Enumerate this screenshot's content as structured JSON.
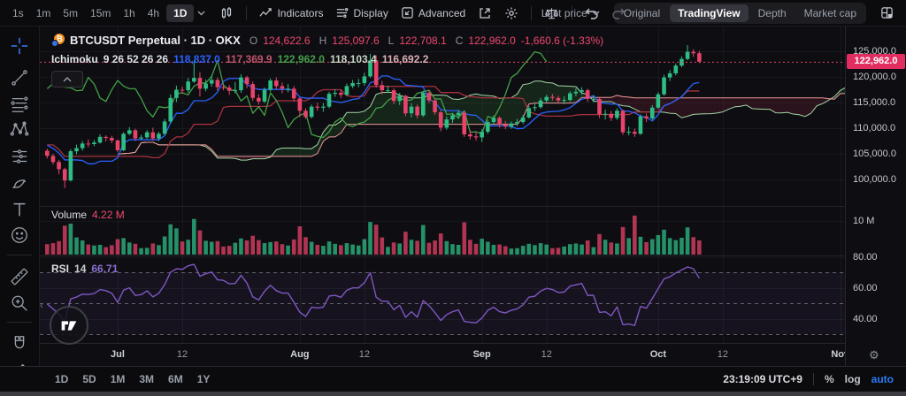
{
  "toolbar_top": {
    "timeframes": [
      "1s",
      "1m",
      "5m",
      "15m",
      "1h",
      "4h"
    ],
    "active_timeframe": "1D",
    "buttons": {
      "indicators": "Indicators",
      "display": "Display",
      "advanced": "Advanced"
    },
    "last_price_label": "Last price",
    "view_tabs": [
      "Original",
      "TradingView",
      "Depth",
      "Market cap"
    ],
    "active_view_tab": "TradingView"
  },
  "legend": {
    "symbol_title": "BTCUSDT Perpetual · 1D · OKX",
    "ohlc": {
      "o_label": "O",
      "o": "124,622.6",
      "h_label": "H",
      "h": "125,097.6",
      "l_label": "L",
      "l": "122,708.1",
      "c_label": "C",
      "c": "122,962.0",
      "change": "-1,660.6 (-1.33%)"
    },
    "ichimoku": {
      "name": "Ichimoku",
      "params": "9 26 52 26 26",
      "tenkan": "118,837.0",
      "kijun": "117,369.9",
      "chikou": "122,962.0",
      "senkou_a": "118,103.4",
      "senkou_b": "116,692.2"
    }
  },
  "volume_pane": {
    "label": "Volume",
    "value": "4.22 M"
  },
  "rsi_pane": {
    "label": "RSI",
    "params": "14",
    "value": "66.71"
  },
  "price_axis": {
    "ticks": [
      {
        "value": 125000,
        "label": "125,000.0"
      },
      {
        "value": 120000,
        "label": "120,000.0"
      },
      {
        "value": 115000,
        "label": "115,000.0"
      },
      {
        "value": 110000,
        "label": "110,000.0"
      },
      {
        "value": 105000,
        "label": "105,000.0"
      },
      {
        "value": 100000,
        "label": "100,000.0"
      }
    ],
    "last_price_tag": "122,962.0"
  },
  "volume_axis_tick": {
    "value": 10,
    "label": "10 M"
  },
  "rsi_axis_ticks": [
    {
      "value": 80,
      "label": "80.00"
    },
    {
      "value": 60,
      "label": "60.00"
    },
    {
      "value": 40,
      "label": "40.00"
    }
  ],
  "time_axis": [
    {
      "label": "Jul",
      "index": 12,
      "major": true
    },
    {
      "label": "12",
      "index": 23,
      "major": false
    },
    {
      "label": "Aug",
      "index": 43,
      "major": true
    },
    {
      "label": "12",
      "index": 54,
      "major": false
    },
    {
      "label": "Sep",
      "index": 74,
      "major": true
    },
    {
      "label": "12",
      "index": 85,
      "major": false
    },
    {
      "label": "Oct",
      "index": 104,
      "major": true
    },
    {
      "label": "12",
      "index": 115,
      "major": false
    },
    {
      "label": "Nov",
      "index": 135,
      "major": true
    }
  ],
  "toolbar_bottom": {
    "ranges": [
      "1D",
      "5D",
      "1M",
      "3M",
      "6M",
      "1Y"
    ],
    "clock": "23:19:09 UTC+9",
    "percent_label": "%",
    "log_label": "log",
    "auto_label": "auto"
  },
  "colors": {
    "up": "#2ebd85",
    "down": "#e8436a",
    "tag_bg": "#e12d5f",
    "tenkan": "#2962ff",
    "kijun": "#a8303f",
    "chikou": "#43a047",
    "senkou_a": "#a5d6a7",
    "senkou_b": "#ef9a9a",
    "cloud_up": "rgba(67,160,71,0.16)",
    "cloud_down": "rgba(205,55,85,0.15)",
    "rsi": "#7e57c2",
    "rsi_band": "rgba(126,87,194,0.08)",
    "grid": "rgba(175,185,205,0.06)",
    "dashed": "rgba(190,195,205,0.45)",
    "accent_blue": "#2d7bf4"
  },
  "chart_data": {
    "type": "candlestick",
    "symbol": "BTCUSDT Perpetual",
    "exchange": "OKX",
    "interval": "1D",
    "last_price": 122962.0,
    "indicators": [
      {
        "name": "Ichimoku",
        "params": [
          9,
          26,
          52,
          26,
          26
        ]
      },
      {
        "name": "Volume",
        "last_value_millions": 4.22
      },
      {
        "name": "RSI",
        "period": 14,
        "last_value": 66.71,
        "levels": [
          70,
          50,
          30
        ]
      }
    ],
    "lead_in": [
      [
        105200,
        106100,
        103800,
        104800,
        3.0
      ],
      [
        104800,
        106300,
        104200,
        105900,
        2.8
      ],
      [
        105900,
        106400,
        104900,
        105600,
        2.4
      ],
      [
        105600,
        106800,
        105200,
        106100,
        2.6
      ],
      [
        106100,
        110500,
        105900,
        110300,
        5.8
      ],
      [
        110300,
        110700,
        108900,
        110200,
        3.9
      ],
      [
        110200,
        110600,
        107800,
        108600,
        3.5
      ],
      [
        108600,
        108900,
        102800,
        105900,
        4.8
      ],
      [
        105900,
        106600,
        105200,
        106000,
        2.9
      ],
      [
        106000,
        106300,
        104600,
        105500,
        3.1
      ],
      [
        105500,
        107200,
        105100,
        106800,
        2.7
      ],
      [
        106800,
        109300,
        106500,
        108900,
        3.6
      ],
      [
        108900,
        109100,
        104200,
        104700,
        5.2
      ],
      [
        104700,
        105500,
        103900,
        104900,
        3.3
      ]
    ],
    "candles": [
      [
        105600,
        106000,
        104100,
        104600,
        3.1
      ],
      [
        104600,
        105000,
        102900,
        103400,
        3.4
      ],
      [
        103400,
        103800,
        101000,
        102000,
        4.0
      ],
      [
        102000,
        102300,
        98300,
        99800,
        8.6
      ],
      [
        99800,
        105900,
        99600,
        105500,
        9.2
      ],
      [
        105500,
        106800,
        104900,
        106100,
        5.1
      ],
      [
        106100,
        107500,
        105600,
        107000,
        4.2
      ],
      [
        107000,
        107800,
        106300,
        106900,
        3.0
      ],
      [
        106900,
        107700,
        106500,
        107200,
        2.7
      ],
      [
        107200,
        108800,
        107000,
        108300,
        2.9
      ],
      [
        108300,
        108600,
        107400,
        108100,
        2.2
      ],
      [
        108100,
        108500,
        107100,
        107600,
        2.8
      ],
      [
        107600,
        107800,
        105300,
        105700,
        4.6
      ],
      [
        105700,
        109200,
        105500,
        108900,
        4.9
      ],
      [
        108900,
        110200,
        108600,
        109600,
        3.6
      ],
      [
        109600,
        109900,
        107500,
        108000,
        3.2
      ],
      [
        108000,
        108700,
        107700,
        108200,
        1.9
      ],
      [
        108200,
        109600,
        107900,
        109200,
        2.0
      ],
      [
        109200,
        110100,
        107600,
        108000,
        3.3
      ],
      [
        108000,
        109300,
        107500,
        108900,
        2.8
      ],
      [
        108900,
        111800,
        108600,
        111300,
        5.4
      ],
      [
        111300,
        116600,
        110900,
        115900,
        9.0
      ],
      [
        115900,
        118300,
        115100,
        117500,
        7.8
      ],
      [
        117500,
        118100,
        116700,
        117400,
        3.9
      ],
      [
        117400,
        119800,
        116900,
        119100,
        4.4
      ],
      [
        119100,
        123200,
        118800,
        119800,
        10.6
      ],
      [
        119800,
        120900,
        116200,
        117700,
        7.2
      ],
      [
        117700,
        119500,
        117200,
        118700,
        4.1
      ],
      [
        118700,
        120300,
        118100,
        119400,
        3.8
      ],
      [
        119400,
        119900,
        117300,
        118000,
        4.0
      ],
      [
        118000,
        118700,
        117400,
        117900,
        2.4
      ],
      [
        117900,
        118400,
        116500,
        117300,
        2.6
      ],
      [
        117300,
        119000,
        116800,
        117400,
        3.5
      ],
      [
        117400,
        120500,
        116900,
        119900,
        4.8
      ],
      [
        119900,
        120200,
        117800,
        118600,
        4.2
      ],
      [
        118600,
        119100,
        115300,
        115900,
        5.6
      ],
      [
        115900,
        116600,
        114600,
        115200,
        4.3
      ],
      [
        115200,
        117900,
        114900,
        117500,
        3.4
      ],
      [
        117500,
        119700,
        117100,
        119300,
        3.7
      ],
      [
        119300,
        119900,
        117600,
        118200,
        3.9
      ],
      [
        118200,
        118900,
        116800,
        117700,
        3.1
      ],
      [
        117700,
        118600,
        117000,
        117700,
        2.7
      ],
      [
        117700,
        118200,
        115200,
        115800,
        4.5
      ],
      [
        115800,
        116000,
        112200,
        113400,
        8.4
      ],
      [
        113400,
        113900,
        111800,
        112200,
        5.2
      ],
      [
        112200,
        114600,
        111900,
        114200,
        3.8
      ],
      [
        114200,
        115000,
        113400,
        114000,
        2.9
      ],
      [
        114000,
        114900,
        113200,
        114200,
        2.6
      ],
      [
        114200,
        117100,
        113900,
        116700,
        3.9
      ],
      [
        116700,
        117600,
        116100,
        116900,
        3.2
      ],
      [
        116900,
        117500,
        115900,
        116500,
        2.8
      ],
      [
        116500,
        118700,
        116300,
        118200,
        3.4
      ],
      [
        118200,
        119400,
        117800,
        118800,
        3.0
      ],
      [
        118800,
        119600,
        118000,
        118800,
        2.7
      ],
      [
        118800,
        120800,
        118300,
        120100,
        4.6
      ],
      [
        120100,
        124500,
        119800,
        123200,
        9.7
      ],
      [
        123200,
        124200,
        117900,
        118400,
        8.9
      ],
      [
        118400,
        119200,
        116600,
        117400,
        5.1
      ],
      [
        117400,
        118300,
        116900,
        117400,
        2.3
      ],
      [
        117400,
        117800,
        114700,
        115300,
        3.6
      ],
      [
        115300,
        116900,
        114500,
        116300,
        3.3
      ],
      [
        116300,
        116500,
        112300,
        112900,
        6.8
      ],
      [
        112900,
        114800,
        112100,
        114200,
        4.4
      ],
      [
        114200,
        114600,
        111900,
        112500,
        4.1
      ],
      [
        112500,
        117300,
        112200,
        116900,
        8.8
      ],
      [
        116900,
        117400,
        114900,
        115400,
        3.5
      ],
      [
        115400,
        115800,
        112600,
        113100,
        4.2
      ],
      [
        113100,
        113400,
        109400,
        110100,
        6.3
      ],
      [
        110100,
        112300,
        109700,
        111700,
        4.0
      ],
      [
        111700,
        113000,
        111000,
        112500,
        3.1
      ],
      [
        112500,
        113600,
        111800,
        113000,
        2.9
      ],
      [
        113000,
        113300,
        108300,
        108800,
        9.6
      ],
      [
        108800,
        109600,
        107800,
        108400,
        4.4
      ],
      [
        108400,
        109300,
        107600,
        108200,
        3.2
      ],
      [
        108200,
        109800,
        107300,
        109300,
        4.7
      ],
      [
        109300,
        111600,
        108900,
        111200,
        3.8
      ],
      [
        111200,
        112500,
        110700,
        112000,
        2.9
      ],
      [
        112000,
        112300,
        110100,
        110700,
        3.0
      ],
      [
        110700,
        111400,
        109800,
        110300,
        2.5
      ],
      [
        110300,
        111300,
        109900,
        110900,
        1.8
      ],
      [
        110900,
        111800,
        110400,
        111200,
        1.9
      ],
      [
        111200,
        112600,
        110800,
        112100,
        2.6
      ],
      [
        112100,
        114300,
        111900,
        113900,
        3.2
      ],
      [
        113900,
        114800,
        113300,
        114100,
        2.8
      ],
      [
        114100,
        115900,
        113800,
        115400,
        3.4
      ],
      [
        115400,
        116500,
        115000,
        116100,
        3.0
      ],
      [
        116100,
        116700,
        115400,
        115900,
        1.9
      ],
      [
        115900,
        116300,
        114900,
        115400,
        2.0
      ],
      [
        115400,
        116200,
        114700,
        115500,
        2.4
      ],
      [
        115500,
        117200,
        115200,
        116800,
        3.1
      ],
      [
        116800,
        117800,
        116200,
        117100,
        3.3
      ],
      [
        117100,
        118000,
        116500,
        117400,
        3.0
      ],
      [
        117400,
        117700,
        115100,
        115700,
        4.2
      ],
      [
        115700,
        116400,
        115000,
        115700,
        2.2
      ],
      [
        115700,
        115900,
        112000,
        112700,
        6.1
      ],
      [
        112700,
        113600,
        111700,
        112800,
        4.4
      ],
      [
        112800,
        113400,
        111400,
        112000,
        3.6
      ],
      [
        112000,
        113900,
        111600,
        113400,
        3.3
      ],
      [
        113400,
        113600,
        108700,
        109200,
        8.2
      ],
      [
        109200,
        110300,
        108600,
        109300,
        4.9
      ],
      [
        109300,
        109900,
        108300,
        108900,
        11.6
      ],
      [
        108900,
        112700,
        108700,
        112300,
        5.3
      ],
      [
        112300,
        112900,
        111200,
        111900,
        3.7
      ],
      [
        111900,
        114500,
        111600,
        114000,
        4.6
      ],
      [
        114000,
        117000,
        113700,
        116600,
        5.8
      ],
      [
        116600,
        120400,
        116300,
        119900,
        7.4
      ],
      [
        119900,
        121300,
        119200,
        120700,
        4.9
      ],
      [
        120700,
        122600,
        120300,
        122200,
        4.3
      ],
      [
        122200,
        124000,
        121900,
        123500,
        5.0
      ],
      [
        123500,
        126200,
        123300,
        124900,
        8.1
      ],
      [
        124900,
        125400,
        123900,
        124600,
        5.2
      ],
      [
        124622.6,
        125097.6,
        122708.1,
        122962.0,
        4.22
      ]
    ]
  }
}
